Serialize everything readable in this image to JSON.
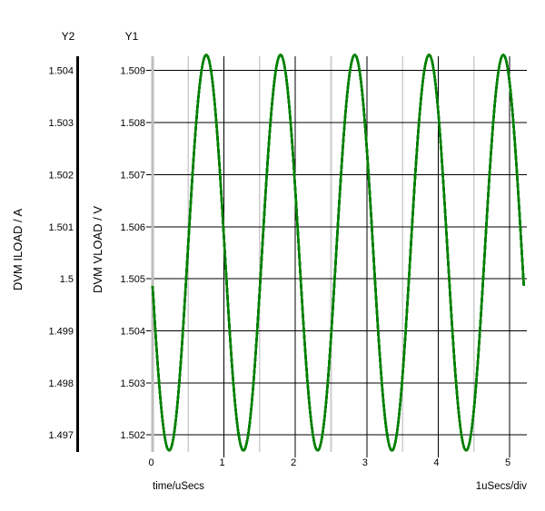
{
  "labels": {
    "y2_header": "Y2",
    "y1_header": "Y1",
    "y2_axis_title": "DVM ILOAD / A",
    "y1_axis_title": "DVM VLOAD / V",
    "x_axis_title": "time/uSecs",
    "x_scale_per_div": "1uSecs/div"
  },
  "colors": {
    "background": "#ffffff",
    "trace": "#008000",
    "grid_major": "#000000",
    "grid_minor": "#cdcdcd",
    "y1_axis_line": "#bdbdbd",
    "y2_axis_line": "#000000",
    "text": "#000000"
  },
  "chart_data": {
    "type": "line",
    "title": "",
    "xlabel": "time/uSecs",
    "x_units_per_div": "1uSecs/div",
    "x_ticks": [
      0,
      1,
      2,
      3,
      4,
      5
    ],
    "x_tick_labels": [
      "0",
      "1",
      "2",
      "3",
      "4",
      "5"
    ],
    "x_minor_ticks": [
      0.5,
      1.5,
      2.5,
      3.5,
      4.5
    ],
    "x_range_us": [
      0,
      5.24
    ],
    "grid": "horizontal major black lines at each Y tick; vertical black lines at integer uSecs; light gray vertical lines at half uSecs",
    "legend": false,
    "y1_axis": {
      "label": "DVM VLOAD / V",
      "tick_labels": [
        "1.509",
        "1.508",
        "1.507",
        "1.506",
        "1.505",
        "1.504",
        "1.503",
        "1.502"
      ],
      "tick_values": [
        1.509,
        1.508,
        1.507,
        1.506,
        1.505,
        1.504,
        1.503,
        1.502
      ],
      "range": [
        1.50167,
        1.50927
      ]
    },
    "y2_axis": {
      "label": "DVM ILOAD / A",
      "tick_labels": [
        "1.504",
        "1.503",
        "1.502",
        "1.501",
        "1.5",
        "1.499",
        "1.498",
        "1.497"
      ],
      "tick_values": [
        1.504,
        1.503,
        1.502,
        1.501,
        1.5,
        1.499,
        1.498,
        1.497
      ],
      "range": [
        1.49667,
        1.50427
      ]
    },
    "series": [
      {
        "name": "DVM VLOAD",
        "axis": "Y1",
        "color": "#008000",
        "waveform": "sine",
        "mean_V": 1.5055,
        "amplitude_V": 0.0038,
        "period_us": 1.04,
        "first_trough_us": 0.232,
        "t_start_us": 0,
        "t_end_us": 5.2,
        "approx_min_V": 1.5017,
        "approx_max_V": 1.5093
      }
    ]
  }
}
